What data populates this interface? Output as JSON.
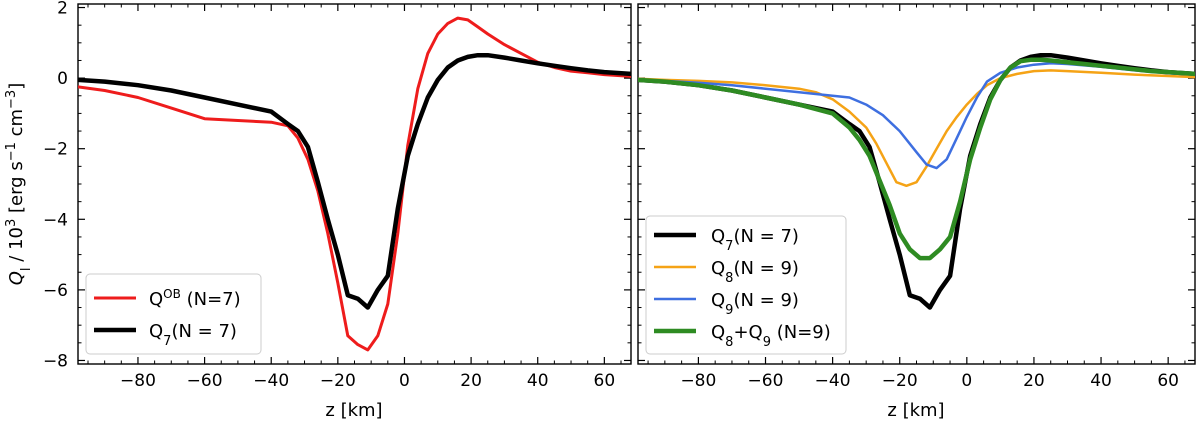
{
  "chart_data": [
    {
      "type": "line",
      "panel": "left",
      "xlabel": "z [km]",
      "ylabel_main": "Q",
      "ylabel_sub": "l",
      "ylabel_rest": " / 10",
      "ylabel_exp": "3",
      "ylabel_units_a": " [erg s",
      "ylabel_units_exp1": "−1",
      "ylabel_units_b": " cm",
      "ylabel_units_exp2": "−3",
      "ylabel_units_c": "]",
      "xlim": [
        -98,
        68
      ],
      "ylim": [
        -8.1,
        2.1
      ],
      "xticks": [
        -80,
        -60,
        -40,
        -20,
        0,
        20,
        40,
        60
      ],
      "xtick_labels": [
        "−80",
        "−60",
        "−40",
        "−20",
        "0",
        "20",
        "40",
        "60"
      ],
      "yticks": [
        2,
        0,
        -2,
        -4,
        -6,
        -8
      ],
      "ytick_labels": [
        "2",
        "0",
        "−2",
        "−4",
        "−6",
        "−8"
      ],
      "legend_position": "lower-left",
      "series": [
        {
          "name_main": "Q",
          "name_sup": "OB",
          "name_sub": "",
          "name_rest": " (N=7)",
          "color": "#ee1c1c",
          "width": 3,
          "x": [
            -98,
            -90,
            -80,
            -70,
            -60,
            -50,
            -40,
            -35,
            -32,
            -29,
            -26,
            -23,
            -20,
            -17,
            -14,
            -11,
            -8,
            -5,
            -2,
            1,
            4,
            7,
            10,
            13,
            16,
            19,
            22,
            25,
            30,
            35,
            40,
            45,
            50,
            55,
            60,
            68
          ],
          "y": [
            -0.25,
            -0.35,
            -0.55,
            -0.85,
            -1.15,
            -1.2,
            -1.25,
            -1.35,
            -1.7,
            -2.3,
            -3.2,
            -4.4,
            -5.8,
            -7.3,
            -7.55,
            -7.7,
            -7.3,
            -6.4,
            -4.4,
            -1.9,
            -0.3,
            0.7,
            1.25,
            1.55,
            1.7,
            1.65,
            1.45,
            1.25,
            0.95,
            0.7,
            0.45,
            0.3,
            0.2,
            0.15,
            0.1,
            0.05
          ]
        },
        {
          "name_main": "Q",
          "name_sup": "",
          "name_sub": "7",
          "name_rest": "(N = 7)",
          "color": "#000000",
          "width": 4.5,
          "x": [
            -98,
            -90,
            -80,
            -70,
            -60,
            -50,
            -40,
            -35,
            -32,
            -29,
            -26,
            -23,
            -20,
            -17,
            -14,
            -11,
            -8,
            -5,
            -2,
            1,
            4,
            7,
            10,
            13,
            16,
            19,
            22,
            25,
            30,
            35,
            40,
            45,
            50,
            55,
            60,
            68
          ],
          "y": [
            -0.05,
            -0.1,
            -0.2,
            -0.35,
            -0.55,
            -0.75,
            -0.95,
            -1.3,
            -1.5,
            -1.95,
            -2.95,
            -4.0,
            -5.0,
            -6.15,
            -6.25,
            -6.5,
            -6.0,
            -5.6,
            -3.7,
            -2.2,
            -1.3,
            -0.55,
            -0.05,
            0.3,
            0.5,
            0.6,
            0.65,
            0.65,
            0.58,
            0.5,
            0.42,
            0.35,
            0.28,
            0.22,
            0.17,
            0.12
          ]
        }
      ]
    },
    {
      "type": "line",
      "panel": "right",
      "xlabel": "z [km]",
      "xlim": [
        -98,
        68
      ],
      "ylim": [
        -8.1,
        2.1
      ],
      "xticks": [
        -80,
        -60,
        -40,
        -20,
        0,
        20,
        40,
        60
      ],
      "xtick_labels": [
        "−80",
        "−60",
        "−40",
        "−20",
        "0",
        "20",
        "40",
        "60"
      ],
      "yticks": [
        2,
        0,
        -2,
        -4,
        -6,
        -8
      ],
      "legend_position": "lower-left",
      "series": [
        {
          "name_main": "Q",
          "name_sup": "",
          "name_sub": "7",
          "name_rest": "(N = 7)",
          "color": "#000000",
          "width": 4.5,
          "x": [
            -98,
            -90,
            -80,
            -70,
            -60,
            -50,
            -40,
            -35,
            -32,
            -29,
            -26,
            -23,
            -20,
            -17,
            -14,
            -11,
            -8,
            -5,
            -2,
            1,
            4,
            7,
            10,
            13,
            16,
            19,
            22,
            25,
            30,
            35,
            40,
            45,
            50,
            55,
            60,
            68
          ],
          "y": [
            -0.05,
            -0.1,
            -0.2,
            -0.35,
            -0.55,
            -0.75,
            -0.95,
            -1.3,
            -1.5,
            -1.95,
            -2.95,
            -4.0,
            -5.0,
            -6.15,
            -6.25,
            -6.5,
            -6.0,
            -5.6,
            -3.7,
            -2.2,
            -1.3,
            -0.55,
            -0.05,
            0.3,
            0.5,
            0.6,
            0.65,
            0.65,
            0.58,
            0.5,
            0.42,
            0.35,
            0.28,
            0.22,
            0.17,
            0.12
          ]
        },
        {
          "name_main": "Q",
          "name_sup": "",
          "name_sub": "8",
          "name_rest": "(N = 9)",
          "color": "#f5a316",
          "width": 2.5,
          "x": [
            -98,
            -90,
            -80,
            -70,
            -60,
            -50,
            -45,
            -40,
            -35,
            -30,
            -27,
            -24,
            -21,
            -18,
            -15,
            -12,
            -9,
            -6,
            -3,
            0,
            3,
            6,
            10,
            15,
            20,
            25,
            30,
            40,
            50,
            60,
            68
          ],
          "y": [
            -0.02,
            -0.05,
            -0.08,
            -0.12,
            -0.2,
            -0.3,
            -0.4,
            -0.6,
            -0.95,
            -1.4,
            -1.85,
            -2.4,
            -2.95,
            -3.05,
            -2.95,
            -2.5,
            -2.0,
            -1.5,
            -1.1,
            -0.75,
            -0.45,
            -0.2,
            0.0,
            0.12,
            0.2,
            0.22,
            0.2,
            0.15,
            0.1,
            0.06,
            0.03
          ]
        },
        {
          "name_main": "Q",
          "name_sup": "",
          "name_sub": "9",
          "name_rest": "(N = 9)",
          "color": "#3e6fe0",
          "width": 2.5,
          "x": [
            -98,
            -90,
            -80,
            -70,
            -60,
            -50,
            -40,
            -35,
            -30,
            -25,
            -20,
            -15,
            -12,
            -9,
            -6,
            -3,
            0,
            3,
            6,
            10,
            15,
            20,
            25,
            30,
            40,
            50,
            60,
            68
          ],
          "y": [
            -0.05,
            -0.08,
            -0.13,
            -0.2,
            -0.3,
            -0.4,
            -0.5,
            -0.55,
            -0.75,
            -1.05,
            -1.5,
            -2.1,
            -2.45,
            -2.55,
            -2.3,
            -1.7,
            -1.1,
            -0.55,
            -0.1,
            0.15,
            0.3,
            0.38,
            0.42,
            0.4,
            0.32,
            0.22,
            0.14,
            0.1
          ]
        },
        {
          "name_main": "Q",
          "name_sup": "",
          "name_sub": "8",
          "name_rest": "+Q",
          "name_sub2": "9",
          "name_rest2": " (N=9)",
          "color": "#2e8b22",
          "width": 4.5,
          "x": [
            -98,
            -90,
            -80,
            -70,
            -60,
            -50,
            -40,
            -35,
            -32,
            -29,
            -26,
            -23,
            -20,
            -17,
            -14,
            -11,
            -8,
            -5,
            -2,
            1,
            4,
            7,
            10,
            13,
            16,
            19,
            22,
            25,
            30,
            35,
            40,
            45,
            50,
            55,
            60,
            68
          ],
          "y": [
            -0.05,
            -0.1,
            -0.2,
            -0.35,
            -0.55,
            -0.75,
            -1.0,
            -1.4,
            -1.75,
            -2.2,
            -2.9,
            -3.6,
            -4.4,
            -4.85,
            -5.1,
            -5.1,
            -4.85,
            -4.5,
            -3.5,
            -2.3,
            -1.4,
            -0.6,
            -0.05,
            0.3,
            0.48,
            0.52,
            0.52,
            0.5,
            0.45,
            0.4,
            0.35,
            0.3,
            0.25,
            0.2,
            0.17,
            0.12
          ]
        }
      ]
    }
  ]
}
